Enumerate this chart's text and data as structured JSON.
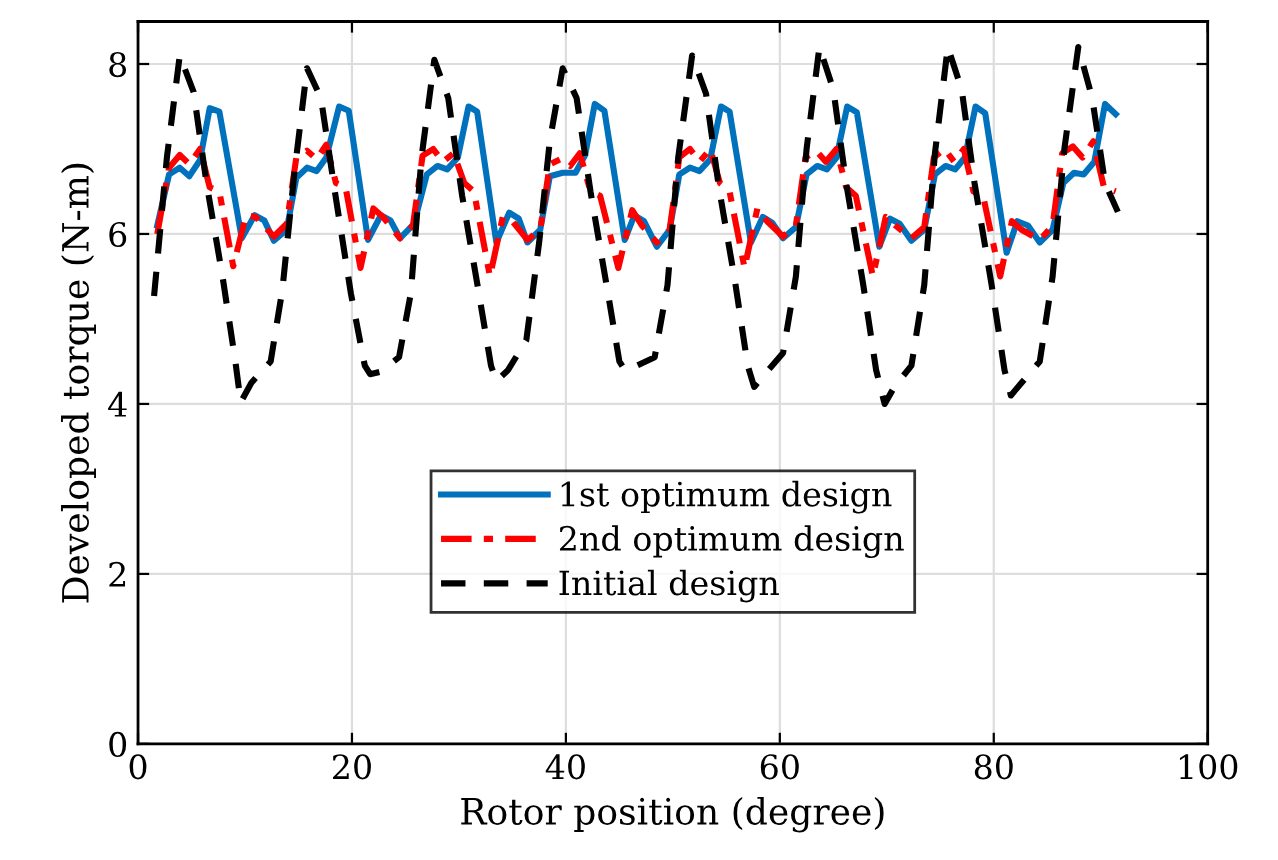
{
  "chart_data": {
    "type": "line",
    "xlabel": "Rotor position (degree)",
    "ylabel": "Developed torque (N-m)",
    "xlim": [
      0,
      100
    ],
    "xticks": [
      0,
      20,
      40,
      60,
      80,
      100
    ],
    "ylim": [
      0,
      8.5
    ],
    "yticks": [
      0,
      2,
      4,
      6,
      8
    ],
    "grid": true,
    "legend": "center",
    "marker": "none",
    "series": [
      {
        "name": "1st optimum design",
        "color": "#0072bd",
        "line_style": "solid",
        "x": [
          1.8,
          2.9,
          3.9,
          4.8,
          5.8,
          6.7,
          7.6,
          9.7,
          10.9,
          11.8,
          12.7,
          13.9,
          14.8,
          15.8,
          16.7,
          17.6,
          18.8,
          19.7,
          21.5,
          22.7,
          23.6,
          24.5,
          25.8,
          27.0,
          28.0,
          28.9,
          29.9,
          30.9,
          31.7,
          33.5,
          34.7,
          35.6,
          36.4,
          37.6,
          38.5,
          39.7,
          40.9,
          41.8,
          42.7,
          43.6,
          45.5,
          46.4,
          47.3,
          48.5,
          49.7,
          50.6,
          51.6,
          52.5,
          53.5,
          54.5,
          55.3,
          57.3,
          58.4,
          59.3,
          60.3,
          61.5,
          62.5,
          63.5,
          64.4,
          65.3,
          66.3,
          67.2,
          69.3,
          70.3,
          71.2,
          72.3,
          73.5,
          74.5,
          75.5,
          76.4,
          77.3,
          78.3,
          79.2,
          81.2,
          82.2,
          83.2,
          84.3,
          85.5,
          86.5,
          87.5,
          88.4,
          89.4,
          90.4,
          91.4
        ],
        "values": [
          6.1,
          6.7,
          6.78,
          6.68,
          6.87,
          7.48,
          7.44,
          5.95,
          6.22,
          6.16,
          5.92,
          6.05,
          6.66,
          6.78,
          6.74,
          6.9,
          7.5,
          7.45,
          5.93,
          6.22,
          6.16,
          5.95,
          6.12,
          6.7,
          6.8,
          6.76,
          6.9,
          7.5,
          7.44,
          5.9,
          6.25,
          6.18,
          5.9,
          6.05,
          6.68,
          6.72,
          6.72,
          6.93,
          7.53,
          7.45,
          5.93,
          6.22,
          6.15,
          5.85,
          6.05,
          6.7,
          6.78,
          6.74,
          6.88,
          7.5,
          7.44,
          5.9,
          6.2,
          6.13,
          5.95,
          6.08,
          6.7,
          6.8,
          6.76,
          6.9,
          7.5,
          7.43,
          5.85,
          6.18,
          6.12,
          5.92,
          6.05,
          6.7,
          6.8,
          6.76,
          6.9,
          7.5,
          7.42,
          5.78,
          6.15,
          6.1,
          5.9,
          6.05,
          6.6,
          6.72,
          6.7,
          6.85,
          7.53,
          7.41
        ]
      },
      {
        "name": "2nd optimum design",
        "color": "#ff0000",
        "line_style": "dashdot",
        "x": [
          1.8,
          2.9,
          3.9,
          4.8,
          5.8,
          6.7,
          7.6,
          8.9,
          10.1,
          11.0,
          12.7,
          13.9,
          14.8,
          15.8,
          16.7,
          17.6,
          18.5,
          19.4,
          20.8,
          22.0,
          22.9,
          24.5,
          25.7,
          26.6,
          27.6,
          28.5,
          29.5,
          30.5,
          31.4,
          32.9,
          34.1,
          35.0,
          36.4,
          37.6,
          38.5,
          39.5,
          40.4,
          41.3,
          42.3,
          43.2,
          44.9,
          46.2,
          47.1,
          48.5,
          49.7,
          50.6,
          51.6,
          52.5,
          53.5,
          54.4,
          55.3,
          56.7,
          57.9,
          58.8,
          60.3,
          61.5,
          62.4,
          63.4,
          64.3,
          65.3,
          66.2,
          67.1,
          68.7,
          69.9,
          70.8,
          72.3,
          73.5,
          74.4,
          75.4,
          76.3,
          77.2,
          78.1,
          79.0,
          80.6,
          81.7,
          82.6,
          84.3,
          85.5,
          86.4,
          87.4,
          88.3,
          89.3,
          90.3,
          91.4
        ],
        "values": [
          6.0,
          6.78,
          6.93,
          6.82,
          7.0,
          6.55,
          6.5,
          5.62,
          6.22,
          6.2,
          5.97,
          6.12,
          6.9,
          6.98,
          6.88,
          7.05,
          6.6,
          6.55,
          5.6,
          6.3,
          6.2,
          5.95,
          6.1,
          6.92,
          7.0,
          6.85,
          6.95,
          6.6,
          6.5,
          5.5,
          6.2,
          6.15,
          5.93,
          6.05,
          6.82,
          6.88,
          6.8,
          6.95,
          6.5,
          6.45,
          5.6,
          6.28,
          6.1,
          5.9,
          6.05,
          6.9,
          7.0,
          6.85,
          7.0,
          6.6,
          6.5,
          5.6,
          6.3,
          6.15,
          5.97,
          6.1,
          6.9,
          6.98,
          6.85,
          7.0,
          6.55,
          6.45,
          5.5,
          6.2,
          6.1,
          5.95,
          6.08,
          6.9,
          7.0,
          6.85,
          7.0,
          6.5,
          6.45,
          5.5,
          6.15,
          6.05,
          5.93,
          6.1,
          6.95,
          7.03,
          6.9,
          7.09,
          6.55,
          6.5
        ]
      },
      {
        "name": "Initial design",
        "color": "#000000",
        "line_style": "dashed",
        "x": [
          1.5,
          2.7,
          3.9,
          5.2,
          6.4,
          7.9,
          9.1,
          9.6,
          10.6,
          12.4,
          13.5,
          14.6,
          15.8,
          17.1,
          18.4,
          19.9,
          21.2,
          21.7,
          22.7,
          24.4,
          25.5,
          26.5,
          27.7,
          29.0,
          30.3,
          31.8,
          33.0,
          33.5,
          34.6,
          36.3,
          37.5,
          38.5,
          39.7,
          41.0,
          42.3,
          43.8,
          45.0,
          45.5,
          46.6,
          48.3,
          49.5,
          50.5,
          51.8,
          53.1,
          54.3,
          55.8,
          57.0,
          57.6,
          58.6,
          60.3,
          61.5,
          62.5,
          63.7,
          65.0,
          66.2,
          67.8,
          69.0,
          69.8,
          70.7,
          72.3,
          73.5,
          74.5,
          75.7,
          77.0,
          78.2,
          79.8,
          81.0,
          81.6,
          82.6,
          84.3,
          85.5,
          86.6,
          87.9,
          89.2,
          90.4,
          91.6
        ],
        "values": [
          5.27,
          6.9,
          8.1,
          7.67,
          6.6,
          5.5,
          4.5,
          4.02,
          4.25,
          4.5,
          5.35,
          6.7,
          7.95,
          7.6,
          6.5,
          5.3,
          4.45,
          4.35,
          4.38,
          4.55,
          5.3,
          6.9,
          8.05,
          7.6,
          6.45,
          5.35,
          4.45,
          4.27,
          4.4,
          4.75,
          5.9,
          7.1,
          7.95,
          7.6,
          6.5,
          5.4,
          4.5,
          4.4,
          4.45,
          4.55,
          5.4,
          6.9,
          8.1,
          7.65,
          6.55,
          5.45,
          4.45,
          4.2,
          4.35,
          4.6,
          5.5,
          7.0,
          8.2,
          7.7,
          6.6,
          5.4,
          4.4,
          4.0,
          4.2,
          4.45,
          5.4,
          6.95,
          8.2,
          7.7,
          6.6,
          5.4,
          4.4,
          4.1,
          4.25,
          4.5,
          5.5,
          7.0,
          8.2,
          7.6,
          6.6,
          6.26
        ]
      }
    ]
  }
}
